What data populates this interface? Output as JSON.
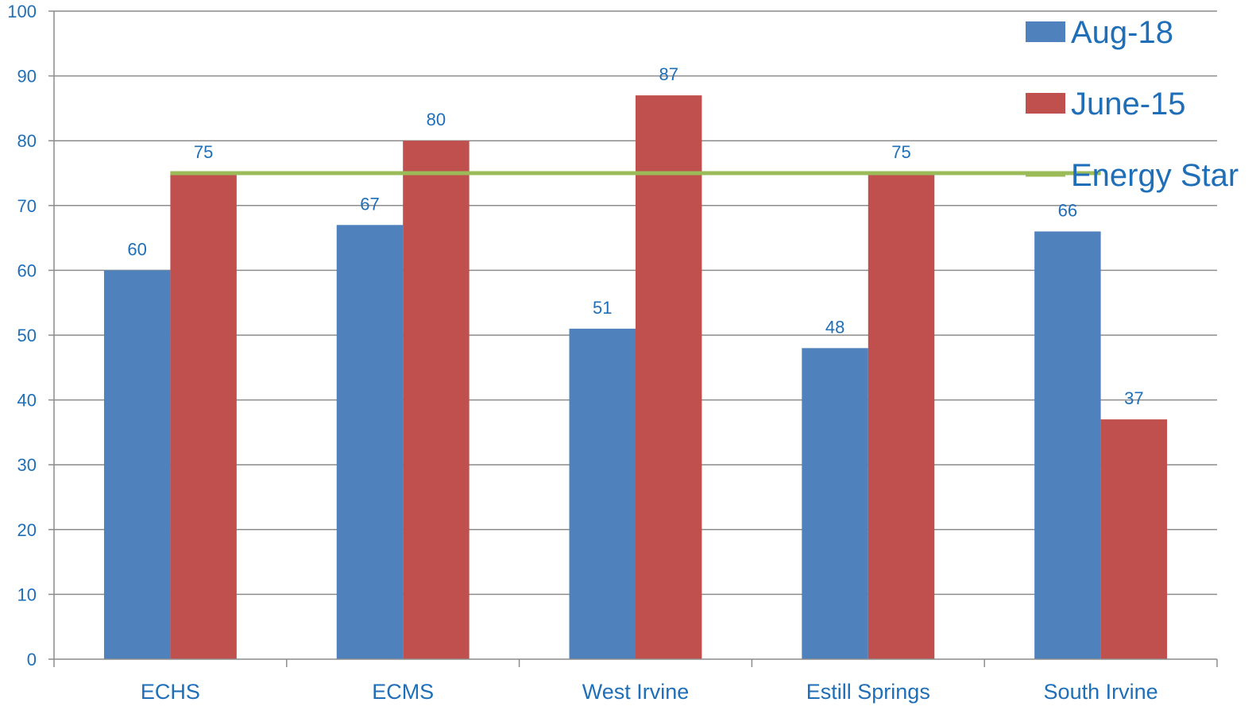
{
  "chart_data": {
    "type": "bar",
    "title": "",
    "xlabel": "",
    "ylabel": "",
    "categories": [
      "ECHS",
      "ECMS",
      "West Irvine",
      "Estill Springs",
      "South Irvine"
    ],
    "series": [
      {
        "name": "Aug-18",
        "type": "bar",
        "color": "#4f81bd",
        "values": [
          60,
          67,
          51,
          48,
          66
        ]
      },
      {
        "name": "June-15",
        "type": "bar",
        "color": "#c0504d",
        "values": [
          75,
          80,
          87,
          75,
          37
        ]
      },
      {
        "name": "Energy Star",
        "type": "line",
        "color": "#9bbb59",
        "values": [
          75,
          75,
          75,
          75,
          75
        ]
      }
    ],
    "data_labels": {
      "Aug-18": [
        "60",
        "67",
        "51",
        "48",
        "66"
      ],
      "June-15": [
        "75",
        "80",
        "87",
        "75",
        "37"
      ]
    },
    "ylim": [
      0,
      100
    ],
    "yticks": [
      "0",
      "10",
      "20",
      "30",
      "40",
      "50",
      "60",
      "70",
      "80",
      "90",
      "100"
    ],
    "grid": true,
    "legend": "top-right"
  }
}
